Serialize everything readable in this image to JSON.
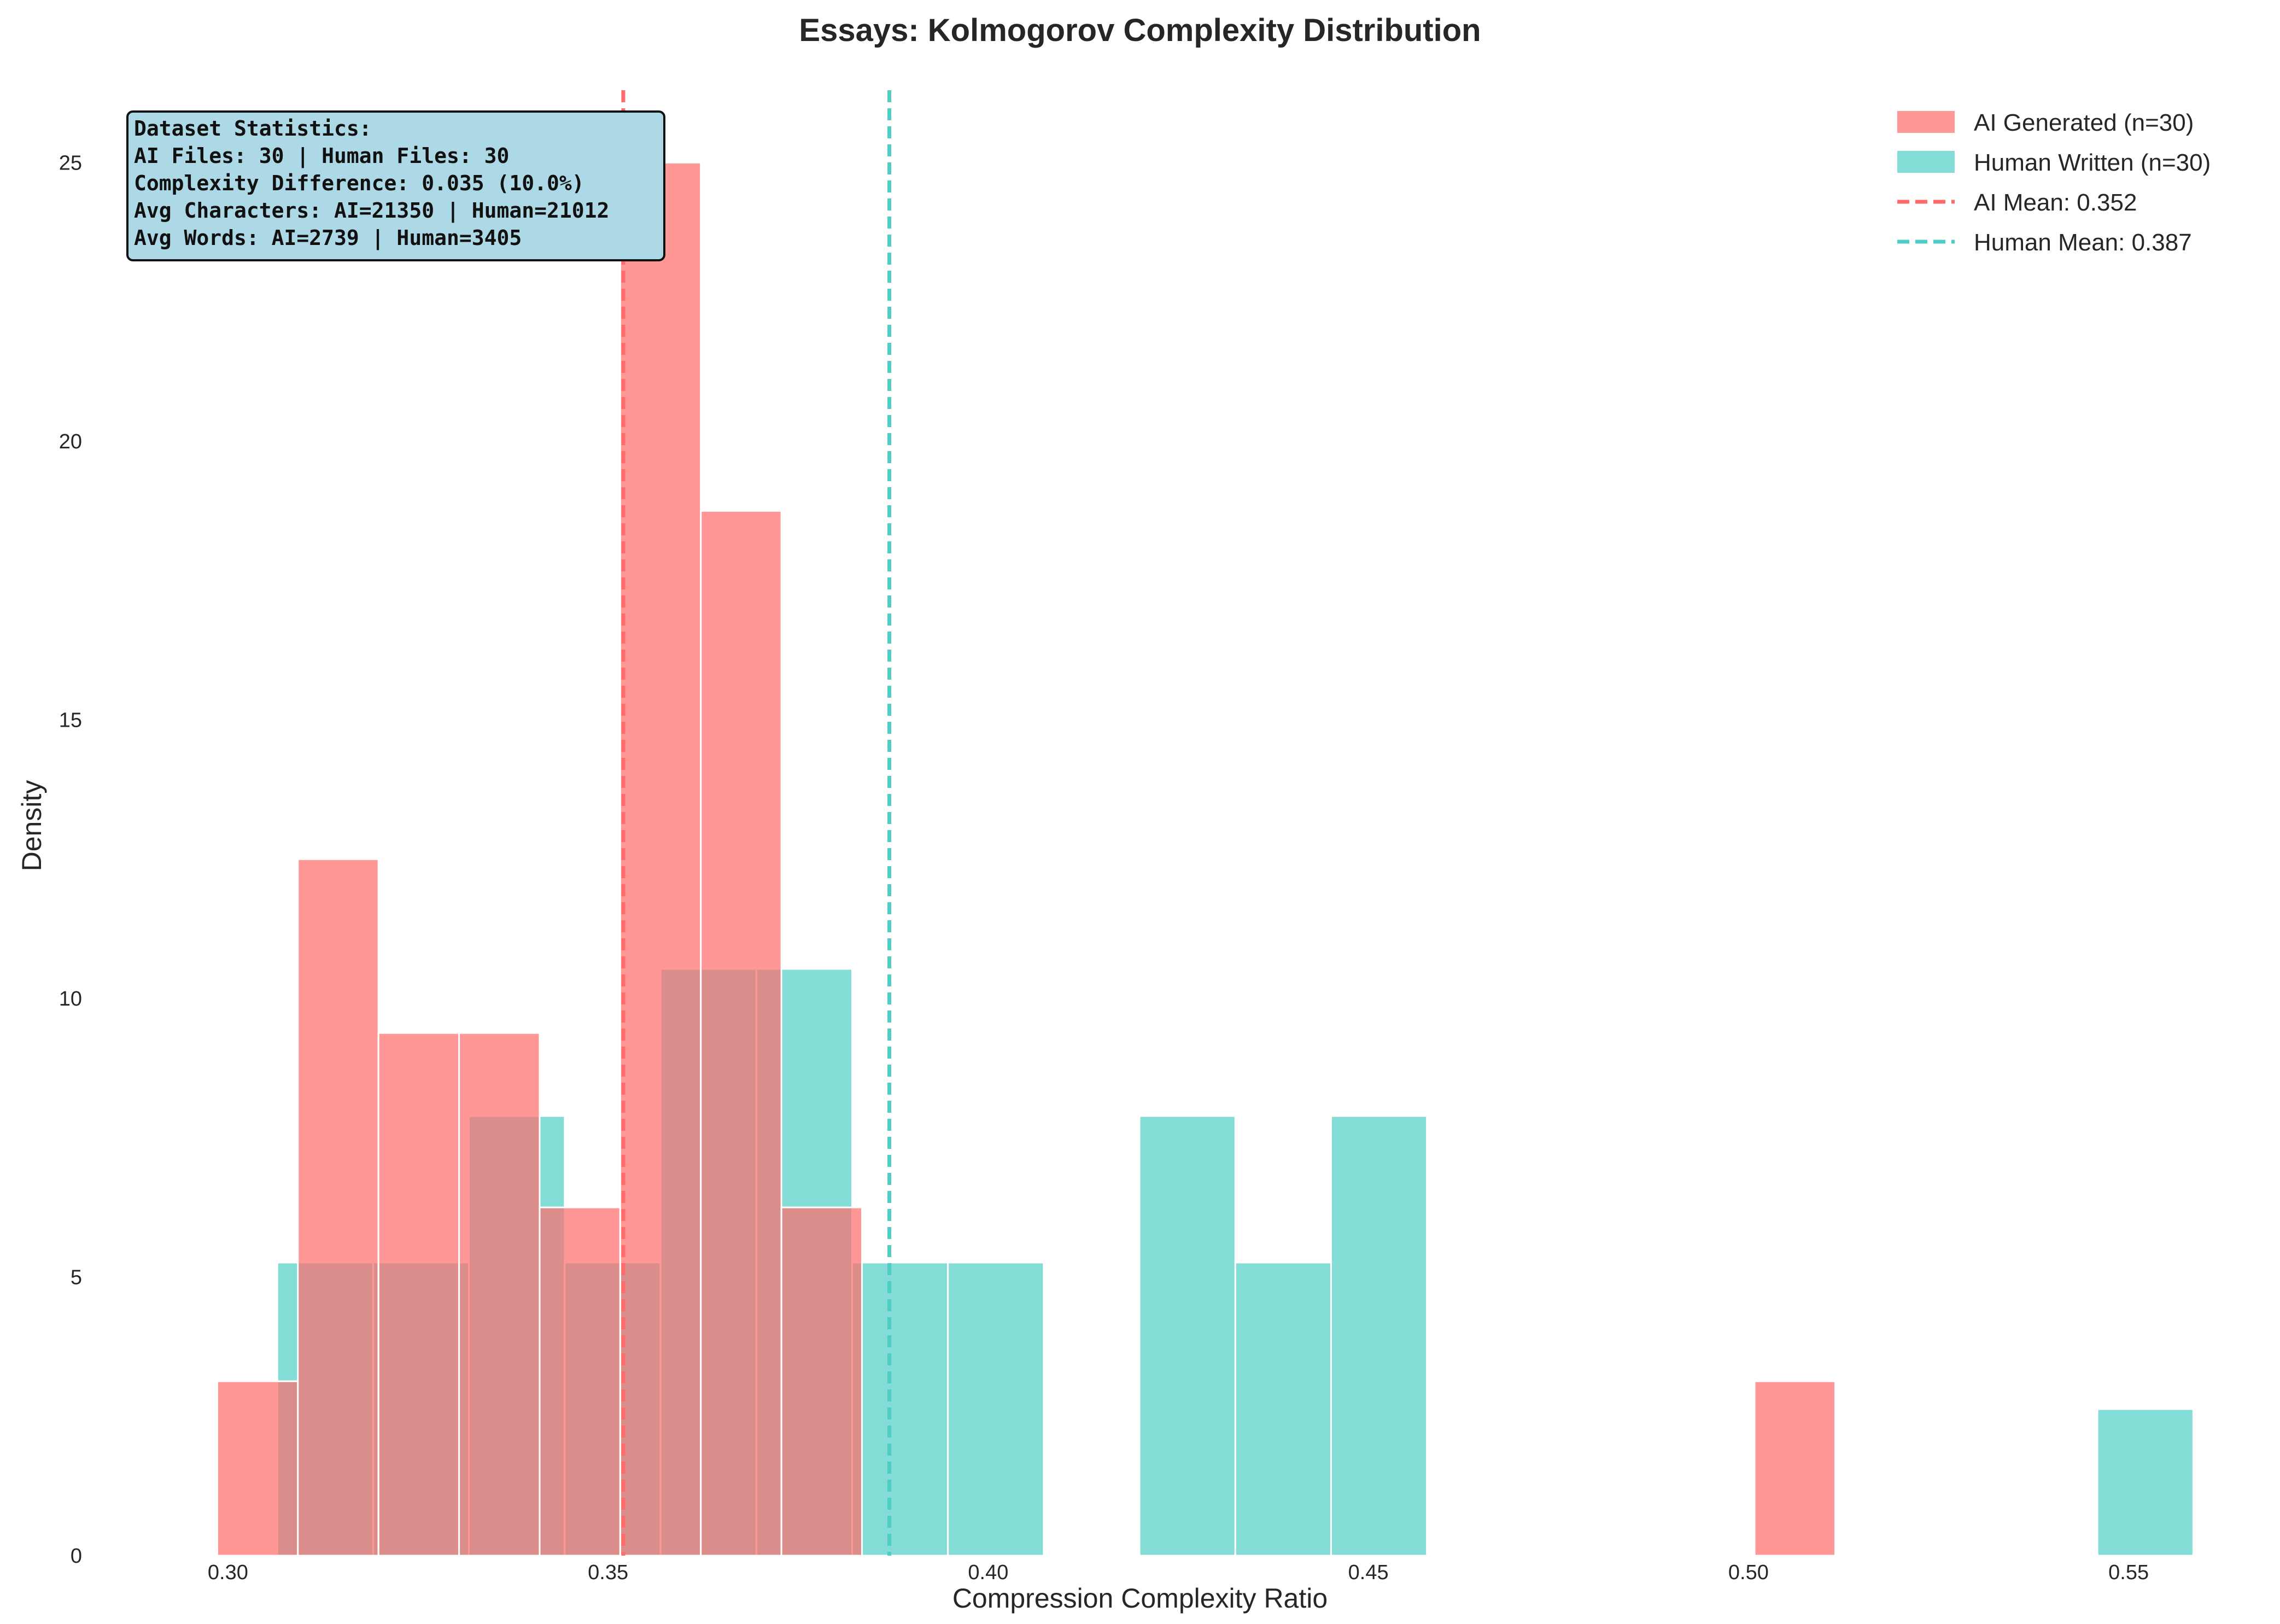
{
  "chart_data": {
    "type": "bar",
    "title": "Essays: Kolmogorov Complexity Distribution",
    "xlabel": "Compression Complexity Ratio",
    "ylabel": "Density",
    "xlim": [
      0.288,
      0.562
    ],
    "ylim": [
      0,
      26.3
    ],
    "x_ticks": [
      0.3,
      0.35,
      0.4,
      0.45,
      0.5,
      0.55
    ],
    "x_tick_labels": [
      "0.30",
      "0.35",
      "0.40",
      "0.45",
      "0.50",
      "0.55"
    ],
    "y_ticks": [
      0,
      5,
      10,
      15,
      20,
      25
    ],
    "y_tick_labels": [
      "0",
      "5",
      "10",
      "15",
      "20",
      "25"
    ],
    "grid": false,
    "legend_position": "top-right",
    "colors": {
      "ai": "#ff6b6b",
      "human": "#4ecdc4"
    },
    "series": [
      {
        "name": "AI Generated (n=30)",
        "key": "ai",
        "bins": [
          {
            "x0": 0.2986,
            "x1": 0.3092,
            "density": 3.13
          },
          {
            "x0": 0.3092,
            "x1": 0.3198,
            "density": 12.5
          },
          {
            "x0": 0.3198,
            "x1": 0.3304,
            "density": 9.38
          },
          {
            "x0": 0.3304,
            "x1": 0.341,
            "density": 9.38
          },
          {
            "x0": 0.341,
            "x1": 0.3516,
            "density": 6.25
          },
          {
            "x0": 0.3516,
            "x1": 0.3622,
            "density": 25.0
          },
          {
            "x0": 0.3622,
            "x1": 0.3728,
            "density": 18.75
          },
          {
            "x0": 0.3728,
            "x1": 0.3834,
            "density": 6.25
          },
          {
            "x0": 0.5008,
            "x1": 0.5114,
            "density": 3.13
          }
        ]
      },
      {
        "name": "Human Written (n=30)",
        "key": "human",
        "bins": [
          {
            "x0": 0.3065,
            "x1": 0.3191,
            "density": 5.26
          },
          {
            "x0": 0.3191,
            "x1": 0.3317,
            "density": 5.26
          },
          {
            "x0": 0.3317,
            "x1": 0.3443,
            "density": 7.89
          },
          {
            "x0": 0.3443,
            "x1": 0.3569,
            "density": 5.26
          },
          {
            "x0": 0.3569,
            "x1": 0.3695,
            "density": 10.53
          },
          {
            "x0": 0.3695,
            "x1": 0.3821,
            "density": 10.53
          },
          {
            "x0": 0.3821,
            "x1": 0.3947,
            "density": 5.26
          },
          {
            "x0": 0.3947,
            "x1": 0.4073,
            "density": 5.26
          },
          {
            "x0": 0.4199,
            "x1": 0.4325,
            "density": 7.89
          },
          {
            "x0": 0.4325,
            "x1": 0.4451,
            "density": 5.26
          },
          {
            "x0": 0.4451,
            "x1": 0.4577,
            "density": 7.89
          },
          {
            "x0": 0.5459,
            "x1": 0.5585,
            "density": 2.63
          }
        ]
      }
    ],
    "mean_lines": [
      {
        "name": "AI Mean: 0.352",
        "key": "ai",
        "x": 0.352
      },
      {
        "name": "Human Mean: 0.387",
        "key": "human",
        "x": 0.387
      }
    ],
    "annotation": {
      "lines": [
        "Dataset Statistics:",
        "AI Files: 30 | Human Files: 30",
        "Complexity Difference: 0.035 (10.0%)",
        "Avg Characters: AI=21350 | Human=21012",
        "Avg Words: AI=2739 | Human=3405"
      ]
    }
  }
}
